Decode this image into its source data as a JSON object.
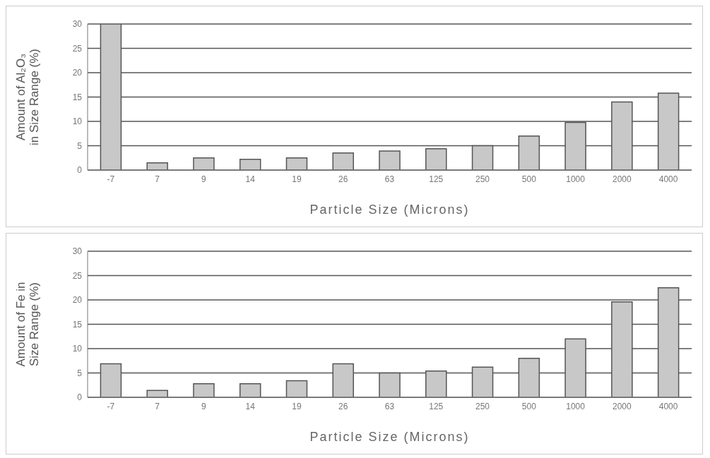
{
  "chart_data": [
    {
      "type": "bar",
      "xlabel": "Particle Size (Microns)",
      "ylabel": "Amount of Al₂O₃ in Size Range (%)",
      "categories": [
        "-7",
        "7",
        "9",
        "14",
        "19",
        "26",
        "63",
        "125",
        "250",
        "500",
        "1000",
        "2000",
        "4000"
      ],
      "values": [
        30,
        1.5,
        2.5,
        2.2,
        2.5,
        3.5,
        3.9,
        4.4,
        5,
        7,
        9.8,
        14,
        15.8
      ],
      "color": "#c8c8c8",
      "ylim": [
        0,
        30
      ],
      "yticks": [
        0,
        5,
        10,
        15,
        20,
        25,
        30
      ],
      "grid": "y"
    },
    {
      "type": "bar",
      "xlabel": "Particle Size (Microns)",
      "ylabel": "Amount of Fe in Size Range (%)",
      "categories": [
        "-7",
        "7",
        "9",
        "14",
        "19",
        "26",
        "63",
        "125",
        "250",
        "500",
        "1000",
        "2000",
        "4000"
      ],
      "values": [
        6.9,
        1.4,
        2.8,
        2.8,
        3.4,
        6.9,
        5,
        5.4,
        6.2,
        8,
        12,
        19.6,
        22.5
      ],
      "color": "#c8c8c8",
      "ylim": [
        0,
        30
      ],
      "yticks": [
        0,
        5,
        10,
        15,
        20,
        25,
        30
      ],
      "grid": "y"
    }
  ]
}
